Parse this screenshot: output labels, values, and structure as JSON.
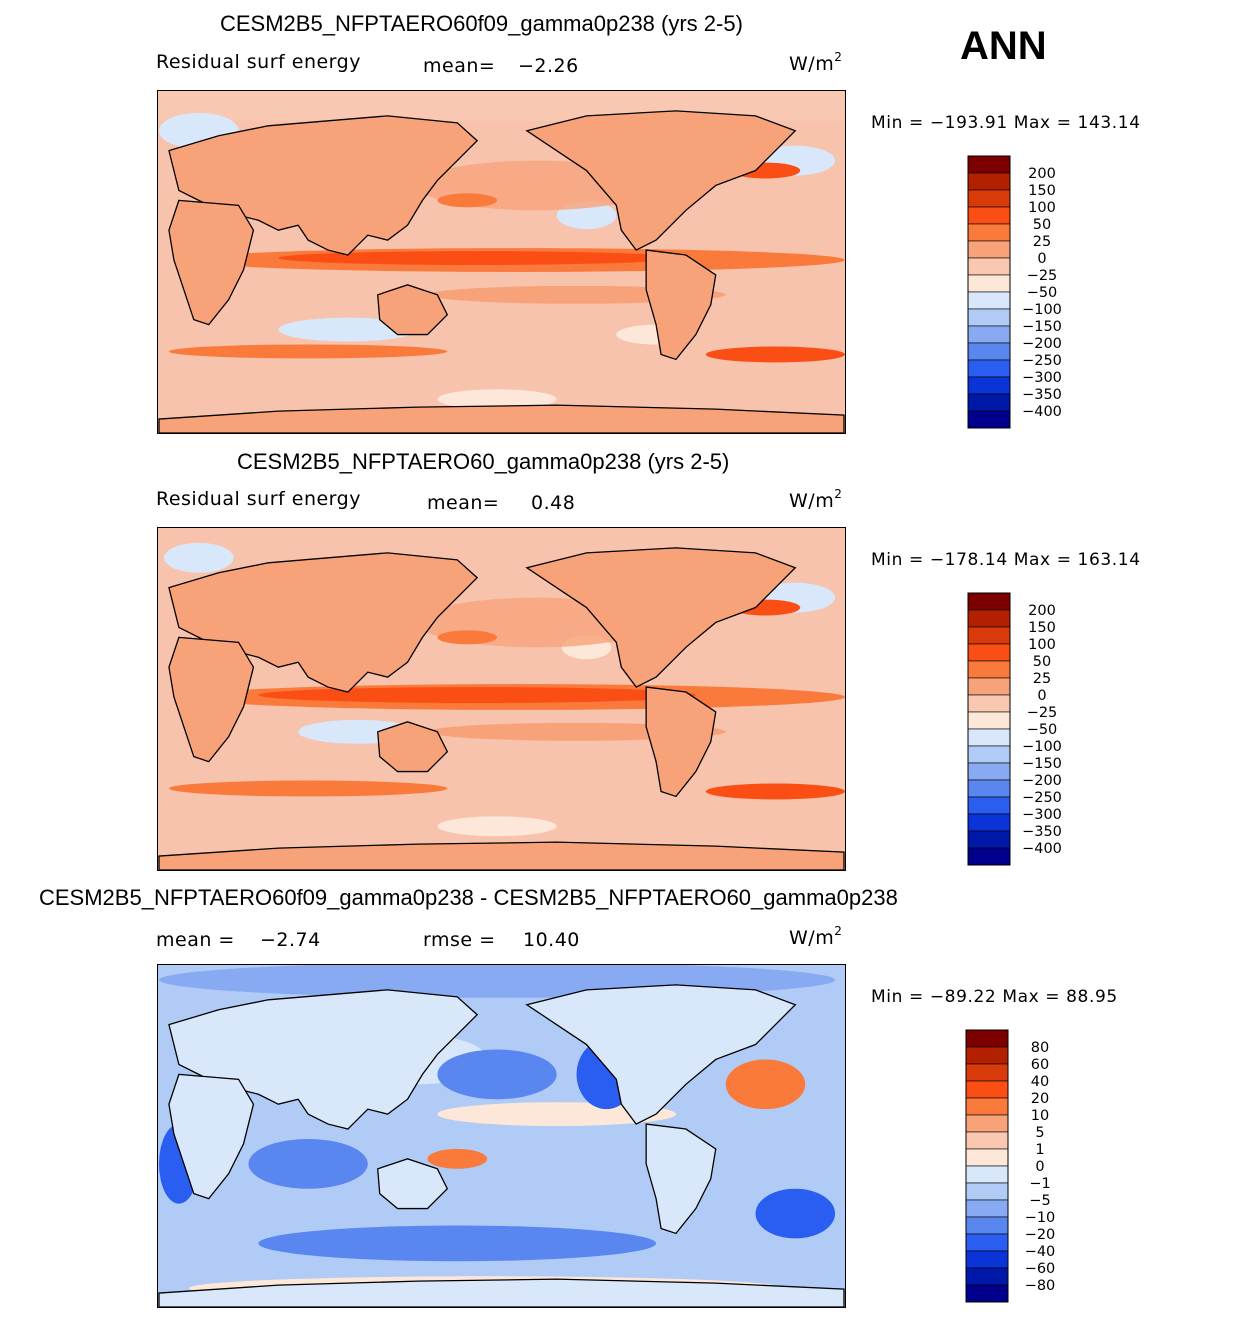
{
  "season": "ANN",
  "panels": [
    {
      "id": "p1",
      "title": "CESM2B5_NFPTAERO60f09_gamma0p238 (yrs 2-5)",
      "variable": "Residual surf energy",
      "mean_label": "mean=",
      "mean_value": "−2.26",
      "units_base": "W/m",
      "units_exp": "2",
      "min_max": "Min  =  −193.91  Max  =  143.14"
    },
    {
      "id": "p2",
      "title": "CESM2B5_NFPTAERO60_gamma0p238 (yrs 2-5)",
      "variable": "Residual surf energy",
      "mean_label": "mean=",
      "mean_value": "0.48",
      "units_base": "W/m",
      "units_exp": "2",
      "min_max": "Min  =  −178.14  Max  =  163.14"
    },
    {
      "id": "p3",
      "title": "CESM2B5_NFPTAERO60f09_gamma0p238 - CESM2B5_NFPTAERO60_gamma0p238",
      "mean_label": "mean  =",
      "mean_value": "−2.74",
      "rmse_label": "rmse  =",
      "rmse_value": "10.40",
      "units_base": "W/m",
      "units_exp": "2",
      "min_max": "Min  =  −89.22  Max  =    88.95"
    }
  ],
  "chart_data": [
    {
      "type": "heatmap",
      "title": "CESM2B5_NFPTAERO60f09_gamma0p238 (yrs 2-5)",
      "subtitle": "Residual surf energy",
      "units": "W/m2",
      "mean": -2.26,
      "min": -193.91,
      "max": 143.14,
      "colorbar": {
        "levels": [
          "200",
          "150",
          "100",
          "50",
          "25",
          "0",
          "−25",
          "−50",
          "−100",
          "−150",
          "−200",
          "−250",
          "−300",
          "−350",
          "−400"
        ],
        "colors": [
          "#7d0000",
          "#b32000",
          "#d93a0a",
          "#fa4e14",
          "#fa7a3c",
          "#f8a27a",
          "#fac8b0",
          "#fde7d8",
          "#d8e8fa",
          "#b0cbf6",
          "#88aaf2",
          "#5a86f0",
          "#2a5ef0",
          "#0a34d8",
          "#0018a8",
          "#00008c"
        ]
      },
      "annotation": "ANN"
    },
    {
      "type": "heatmap",
      "title": "CESM2B5_NFPTAERO60_gamma0p238 (yrs 2-5)",
      "subtitle": "Residual surf energy",
      "units": "W/m2",
      "mean": 0.48,
      "min": -178.14,
      "max": 163.14,
      "colorbar": {
        "levels": [
          "200",
          "150",
          "100",
          "50",
          "25",
          "0",
          "−25",
          "−50",
          "−100",
          "−150",
          "−200",
          "−250",
          "−300",
          "−350",
          "−400"
        ],
        "colors": [
          "#7d0000",
          "#b32000",
          "#d93a0a",
          "#fa4e14",
          "#fa7a3c",
          "#f8a27a",
          "#fac8b0",
          "#fde7d8",
          "#d8e8fa",
          "#b0cbf6",
          "#88aaf2",
          "#5a86f0",
          "#2a5ef0",
          "#0a34d8",
          "#0018a8",
          "#00008c"
        ]
      }
    },
    {
      "type": "heatmap",
      "title": "CESM2B5_NFPTAERO60f09_gamma0p238 - CESM2B5_NFPTAERO60_gamma0p238",
      "units": "W/m2",
      "mean": -2.74,
      "rmse": 10.4,
      "min": -89.22,
      "max": 88.95,
      "colorbar": {
        "levels": [
          "80",
          "60",
          "40",
          "20",
          "10",
          "5",
          "1",
          "0",
          "−1",
          "−5",
          "−10",
          "−20",
          "−40",
          "−60",
          "−80"
        ],
        "colors": [
          "#7d0000",
          "#b32000",
          "#d93a0a",
          "#fa4e14",
          "#fa7a3c",
          "#f8a27a",
          "#fac8b0",
          "#fde7d8",
          "#d8e8fa",
          "#b0cbf6",
          "#88aaf2",
          "#5a86f0",
          "#2a5ef0",
          "#0a34d8",
          "#0018a8",
          "#00008c"
        ]
      }
    }
  ]
}
